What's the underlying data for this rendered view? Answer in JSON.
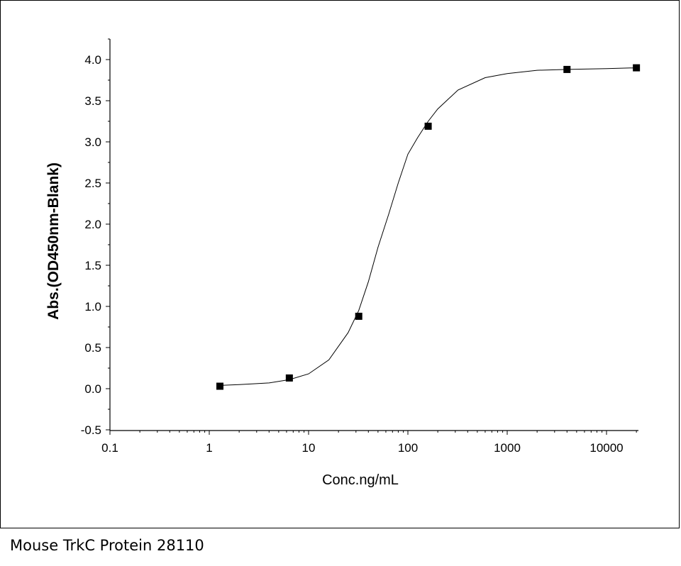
{
  "caption": "Mouse TrkC Protein 28110",
  "chart_data": {
    "type": "scatter",
    "xlabel": "Conc.ng/mL",
    "ylabel": "Abs.(OD450nm-Blank)",
    "x_scale": "log",
    "xlim": [
      0.1,
      20000
    ],
    "ylim": [
      -0.5,
      4.25
    ],
    "x_ticks": [
      0.1,
      1,
      10,
      100,
      1000,
      10000
    ],
    "x_tick_labels": [
      "0.1",
      "1",
      "10",
      "100",
      "1000",
      "10000"
    ],
    "y_ticks": [
      -0.5,
      0.0,
      0.5,
      1.0,
      1.5,
      2.0,
      2.5,
      3.0,
      3.5,
      4.0
    ],
    "y_tick_labels": [
      "-0.5",
      "0.0",
      "0.5",
      "1.0",
      "1.5",
      "2.0",
      "2.5",
      "3.0",
      "3.5",
      "4.0"
    ],
    "grid": false,
    "series": [
      {
        "kind": "points",
        "marker": "square",
        "color": "#000000",
        "x": [
          1.28,
          6.4,
          32,
          160,
          4000,
          20000
        ],
        "y": [
          0.03,
          0.13,
          0.88,
          3.19,
          3.88,
          3.9
        ]
      },
      {
        "kind": "fit-curve",
        "color": "#000000",
        "x": [
          1.28,
          2,
          4,
          6.4,
          10,
          16,
          25,
          32,
          40,
          50,
          64,
          80,
          100,
          125,
          160,
          200,
          320,
          600,
          1000,
          2000,
          4000,
          10000,
          20000
        ],
        "y": [
          0.04,
          0.05,
          0.07,
          0.11,
          0.18,
          0.35,
          0.68,
          0.95,
          1.3,
          1.72,
          2.12,
          2.5,
          2.85,
          3.05,
          3.25,
          3.4,
          3.63,
          3.78,
          3.83,
          3.87,
          3.88,
          3.89,
          3.9
        ]
      }
    ]
  }
}
